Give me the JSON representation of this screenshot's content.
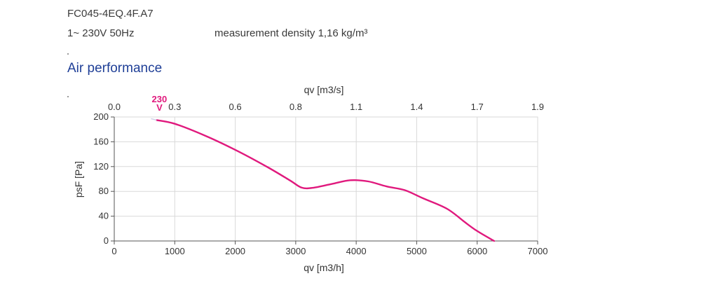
{
  "header": {
    "model": "FC045-4EQ.4F.A7",
    "supply": "1~ 230V 50Hz",
    "density": "measurement density 1,16 kg/m³"
  },
  "section_title": "Air performance",
  "colors": {
    "curve": "#e0197d",
    "title": "#1f3f97",
    "grid": "#d9d9d9",
    "axis": "#555555"
  },
  "chart_data": {
    "type": "line",
    "title": "",
    "xlabel": "qv [m3/h]",
    "x2label": "qv [m3/s]",
    "ylabel": "psF [Pa]",
    "xlim": [
      0,
      7000
    ],
    "ylim": [
      0,
      200
    ],
    "xticks": [
      "0",
      "1000",
      "2000",
      "3000",
      "4000",
      "5000",
      "6000",
      "7000"
    ],
    "yticks": [
      "0",
      "40",
      "80",
      "120",
      "160",
      "200"
    ],
    "x2ticks": [
      "0.0",
      "0.3",
      "0.6",
      "0.8",
      "1.1",
      "1.4",
      "1.7",
      "1.9"
    ],
    "grid": true,
    "series": [
      {
        "name": "230 V",
        "label_lines": [
          "230",
          "V"
        ],
        "x": [
          700,
          1000,
          1500,
          2000,
          2500,
          2900,
          3100,
          3300,
          3600,
          3900,
          4200,
          4500,
          4800,
          5100,
          5500,
          5800,
          6000,
          6280
        ],
        "y": [
          195,
          189,
          170,
          147,
          121,
          98,
          86,
          86,
          92,
          98,
          96,
          88,
          82,
          69,
          52,
          30,
          16,
          0
        ]
      }
    ]
  }
}
